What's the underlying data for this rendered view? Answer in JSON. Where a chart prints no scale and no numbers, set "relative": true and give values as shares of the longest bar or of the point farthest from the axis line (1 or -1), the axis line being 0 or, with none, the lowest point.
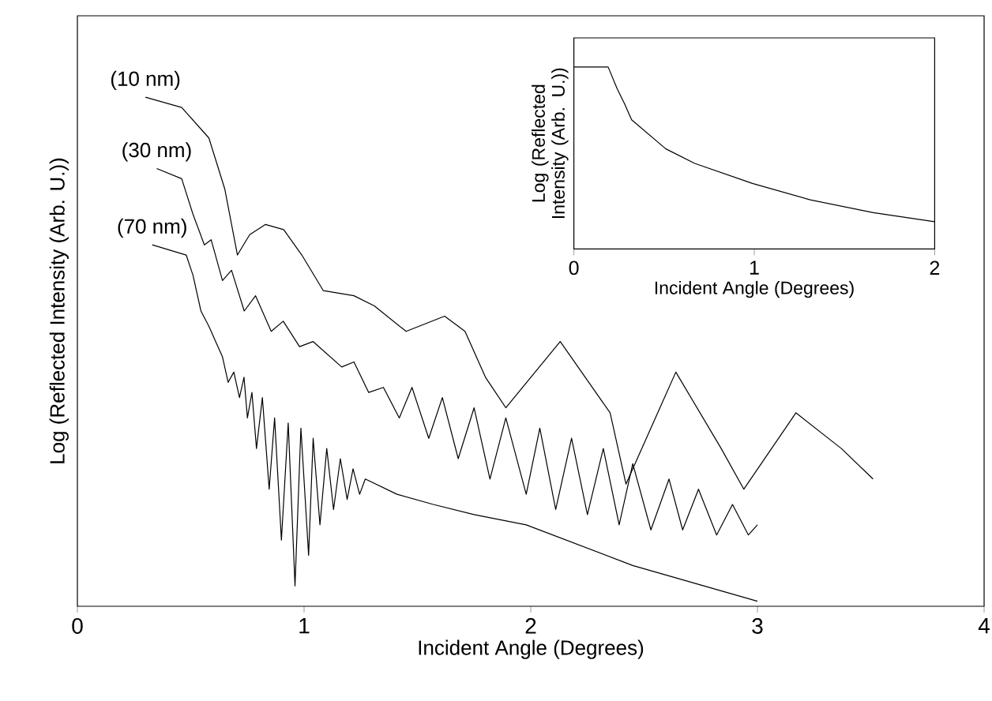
{
  "chart_data": [
    {
      "type": "line",
      "relative": true,
      "xlabel": "Incident Angle (Degrees)",
      "ylabel": "Log (Reflected Intensity (Arb. U.))",
      "xlim": [
        0,
        4
      ],
      "xticks": [
        0,
        1,
        2,
        3,
        4
      ],
      "grid": false,
      "marker": "none",
      "line_style": "solid",
      "series": [
        {
          "name": "(10 nm)",
          "color": "#000000",
          "x": [
            0.3,
            0.46,
            0.58,
            0.65,
            0.706,
            0.76,
            0.83,
            0.91,
            0.99,
            1.085,
            1.22,
            1.31,
            1.45,
            1.62,
            1.71,
            1.8,
            1.89,
            2.13,
            2.35,
            2.42,
            2.64,
            2.84,
            2.94,
            3.17,
            3.37,
            3.51
          ],
          "values": [
            1.0,
            0.98,
            0.92,
            0.82,
            0.69,
            0.73,
            0.75,
            0.74,
            0.69,
            0.62,
            0.61,
            0.59,
            0.54,
            0.57,
            0.54,
            0.45,
            0.39,
            0.52,
            0.38,
            0.24,
            0.46,
            0.31,
            0.23,
            0.38,
            0.31,
            0.25
          ]
        },
        {
          "name": "(30 nm)",
          "color": "#000000",
          "x": [
            0.35,
            0.46,
            0.51,
            0.56,
            0.59,
            0.64,
            0.68,
            0.736,
            0.786,
            0.855,
            0.908,
            0.98,
            1.04,
            1.166,
            1.22,
            1.285,
            1.35,
            1.42,
            1.476,
            1.55,
            1.61,
            1.68,
            1.75,
            1.82,
            1.89,
            1.98,
            2.04,
            2.11,
            2.18,
            2.25,
            2.32,
            2.39,
            2.45,
            2.53,
            2.61,
            2.67,
            2.74,
            2.82,
            2.89,
            2.96,
            3.0
          ],
          "values": [
            0.86,
            0.84,
            0.77,
            0.71,
            0.72,
            0.64,
            0.66,
            0.58,
            0.61,
            0.54,
            0.56,
            0.51,
            0.52,
            0.47,
            0.48,
            0.42,
            0.43,
            0.37,
            0.43,
            0.33,
            0.41,
            0.29,
            0.39,
            0.25,
            0.37,
            0.22,
            0.35,
            0.19,
            0.33,
            0.18,
            0.31,
            0.16,
            0.28,
            0.15,
            0.25,
            0.15,
            0.23,
            0.14,
            0.2,
            0.14,
            0.16
          ]
        },
        {
          "name": "(70 nm)",
          "color": "#000000",
          "x": [
            0.33,
            0.48,
            0.51,
            0.545,
            0.58,
            0.61,
            0.64,
            0.665,
            0.69,
            0.715,
            0.735,
            0.75,
            0.77,
            0.79,
            0.816,
            0.846,
            0.87,
            0.9,
            0.93,
            0.96,
            0.986,
            1.02,
            1.04,
            1.07,
            1.1,
            1.13,
            1.16,
            1.19,
            1.216,
            1.245,
            1.27,
            1.41,
            1.57,
            1.75,
            1.98,
            2.45,
            3.0
          ],
          "values": [
            0.71,
            0.69,
            0.65,
            0.58,
            0.55,
            0.52,
            0.49,
            0.44,
            0.46,
            0.41,
            0.45,
            0.37,
            0.42,
            0.31,
            0.41,
            0.23,
            0.37,
            0.13,
            0.36,
            0.04,
            0.35,
            0.1,
            0.33,
            0.16,
            0.31,
            0.19,
            0.29,
            0.21,
            0.27,
            0.22,
            0.25,
            0.22,
            0.2,
            0.18,
            0.16,
            0.08,
            0.01
          ]
        }
      ]
    },
    {
      "type": "line",
      "relative": true,
      "xlabel": "Incident Angle (Degrees)",
      "ylabel": "Log (Reflected Intensity (Arb. U.))",
      "xlim": [
        0,
        2
      ],
      "xticks": [
        0,
        1,
        2
      ],
      "grid": false,
      "marker": "none",
      "line_style": "solid",
      "series": [
        {
          "color": "#000000",
          "x": [
            0,
            0.19,
            0.24,
            0.28,
            0.32,
            0.51,
            0.67,
            0.99,
            1.31,
            1.66,
            2.0
          ],
          "values": [
            1.0,
            1.0,
            0.88,
            0.8,
            0.71,
            0.55,
            0.47,
            0.36,
            0.27,
            0.2,
            0.15
          ]
        }
      ]
    }
  ]
}
